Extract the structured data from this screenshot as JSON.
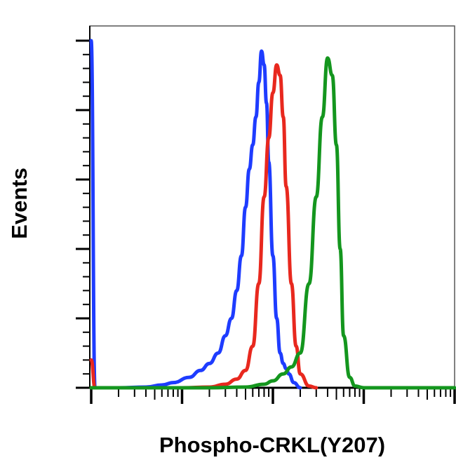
{
  "chart_data": {
    "type": "line",
    "title": "",
    "xlabel": "Phospho-CRKL(Y207)",
    "ylabel": "Events",
    "xscale": "log",
    "xlim": [
      0.001,
      10
    ],
    "ylim": [
      0,
      100
    ],
    "grid": false,
    "legend": "none",
    "series": [
      {
        "color": "#1e3cff",
        "x": [
          0.001,
          0.0011,
          0.002,
          0.004,
          0.006,
          0.008,
          0.012,
          0.016,
          0.02,
          0.025,
          0.03,
          0.035,
          0.04,
          0.045,
          0.05,
          0.055,
          0.06,
          0.065,
          0.07,
          0.075,
          0.08,
          0.085,
          0.09,
          0.1,
          0.11,
          0.12,
          0.13,
          0.14,
          0.15,
          0.17,
          0.2
        ],
        "y": [
          100,
          0,
          0,
          0.2,
          0.8,
          1.5,
          3,
          5,
          7,
          10,
          15,
          20,
          28,
          38,
          52,
          63,
          70,
          78,
          88,
          97,
          93,
          82,
          65,
          38,
          20,
          10,
          7,
          5.5,
          4,
          1.5,
          0
        ]
      },
      {
        "color": "#e8281e",
        "x": [
          0.001,
          0.0011,
          0.002,
          0.01,
          0.02,
          0.03,
          0.04,
          0.05,
          0.06,
          0.07,
          0.08,
          0.09,
          0.1,
          0.11,
          0.12,
          0.13,
          0.14,
          0.16,
          0.18,
          0.2,
          0.25,
          0.3
        ],
        "y": [
          8,
          0,
          0,
          0,
          0.2,
          1,
          2.5,
          5,
          12,
          30,
          55,
          72,
          85,
          93,
          90,
          78,
          58,
          30,
          12,
          4,
          0.5,
          0
        ]
      },
      {
        "color": "#14961e",
        "x": [
          0.001,
          0.02,
          0.05,
          0.08,
          0.1,
          0.13,
          0.16,
          0.2,
          0.25,
          0.3,
          0.35,
          0.4,
          0.45,
          0.5,
          0.55,
          0.6,
          0.7,
          0.8,
          1,
          2,
          10
        ],
        "y": [
          0,
          0,
          0.2,
          1,
          2,
          4,
          6,
          10,
          30,
          55,
          78,
          95,
          90,
          70,
          40,
          15,
          3,
          0.5,
          0,
          0,
          0
        ]
      }
    ]
  }
}
